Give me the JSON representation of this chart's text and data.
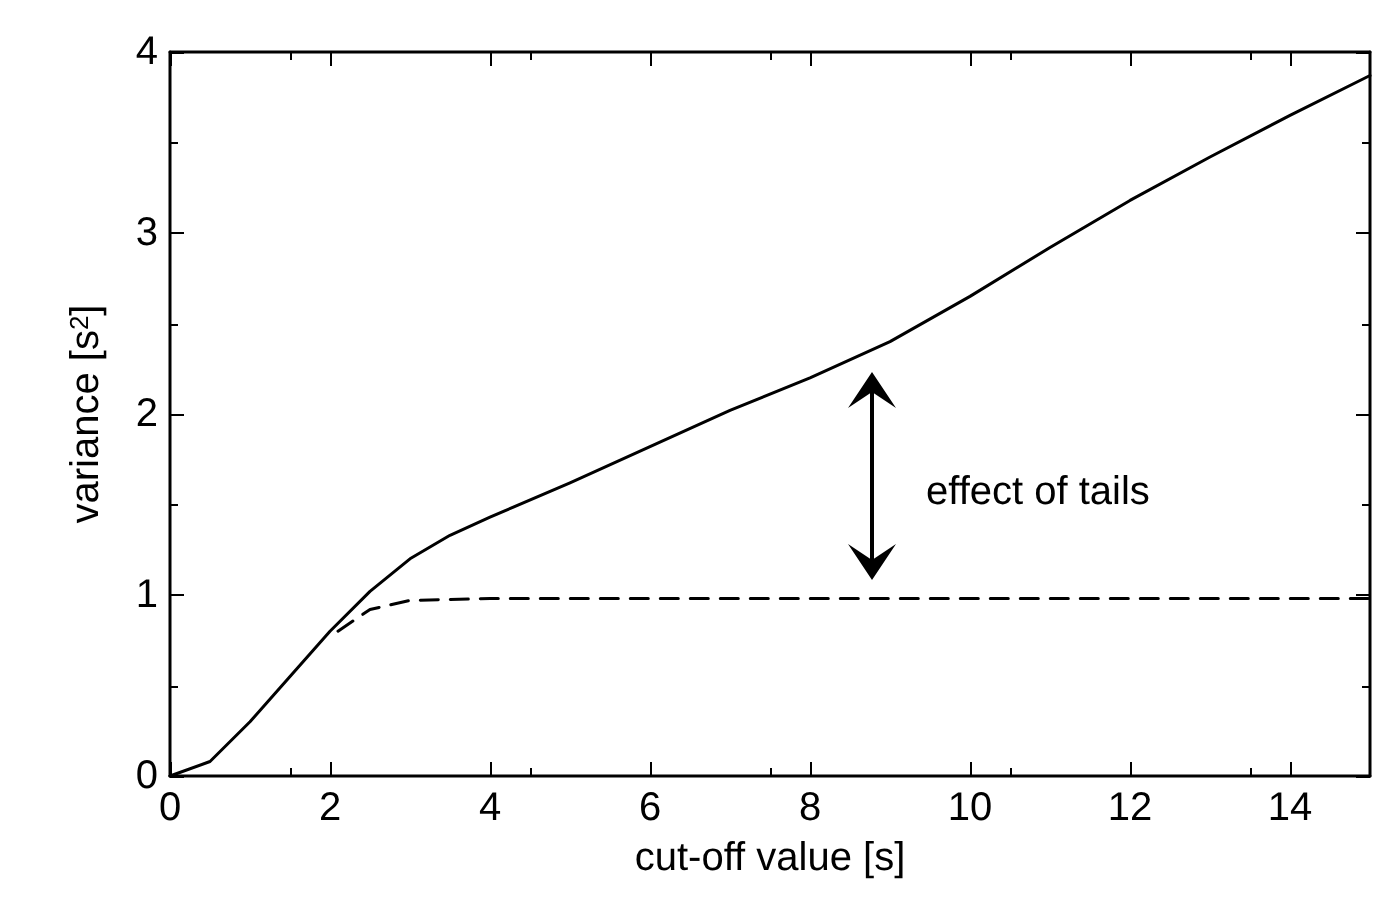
{
  "chart_data": {
    "type": "line",
    "xlabel": "cut-off value [s]",
    "ylabel": "variance [s$^{2}$]",
    "xlim": [
      0,
      15
    ],
    "xticks": [
      0,
      2,
      4,
      6,
      8,
      10,
      12,
      14
    ],
    "ylim": [
      0,
      4
    ],
    "yticks": [
      0,
      1,
      2,
      3,
      4
    ],
    "grid": false,
    "marker": "none",
    "series": [
      {
        "color": "#000000",
        "line_style": "solid",
        "x": [
          0,
          0.5,
          1,
          1.5,
          2,
          2.5,
          3,
          3.5,
          4,
          5,
          6,
          7,
          8,
          9,
          10,
          11,
          12,
          13,
          14,
          15
        ],
        "values": [
          0,
          0.08,
          0.3,
          0.55,
          0.8,
          1.02,
          1.2,
          1.33,
          1.43,
          1.62,
          1.82,
          2.02,
          2.2,
          2.4,
          2.65,
          2.92,
          3.18,
          3.42,
          3.65,
          3.87
        ]
      },
      {
        "color": "#000000",
        "line_style": "dashed",
        "x": [
          2.1,
          2.5,
          3,
          4,
          6,
          8,
          10,
          12,
          14,
          15
        ],
        "values": [
          0.8,
          0.92,
          0.97,
          0.98,
          0.98,
          0.98,
          0.98,
          0.98,
          0.98,
          0.98
        ]
      }
    ],
    "annotations": [
      "effect of tails"
    ]
  }
}
